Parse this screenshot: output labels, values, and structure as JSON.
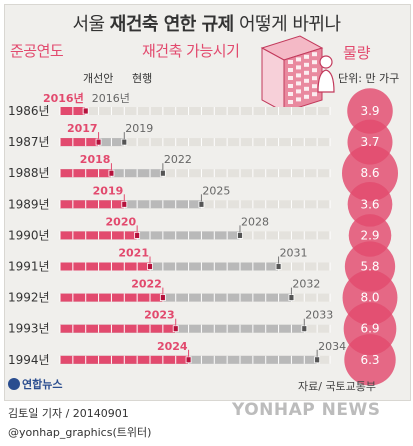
{
  "title_parts": [
    "서울 ",
    "재건축 연한 규제",
    " 어떻게 바뀌나"
  ],
  "headers": {
    "year": "준공연도",
    "available": "재건축 가능시기",
    "quantity": "물량"
  },
  "legend": {
    "improved": "개선안",
    "current": "현행"
  },
  "unit": "단위: 만 가구",
  "source": "자료/ 국토교통부",
  "credit": "김토일 기자 / 20140901",
  "handle": "@yonhap_graphics(트위터)",
  "logo_text": "연합뉴스",
  "watermark": "YONHAP NEWS",
  "colors": {
    "accent": "#e24a6e",
    "bar_gray": "#b9b9b9",
    "bubble": "#e24a6e"
  },
  "chart_data": {
    "type": "bar",
    "categories": [
      "1986년",
      "1987년",
      "1988년",
      "1989년",
      "1990년",
      "1991년",
      "1992년",
      "1993년",
      "1994년"
    ],
    "build_years": [
      1986,
      1987,
      1988,
      1989,
      1990,
      1991,
      1992,
      1993,
      1994
    ],
    "series": [
      {
        "name": "개선안",
        "values": [
          2016,
          2017,
          2018,
          2019,
          2020,
          2021,
          2022,
          2023,
          2024
        ]
      },
      {
        "name": "현행",
        "values": [
          2016,
          2019,
          2022,
          2025,
          2028,
          2031,
          2032,
          2033,
          2034
        ]
      }
    ],
    "value_labels": {
      "improved": [
        "2016년",
        "2017",
        "2018",
        "2019",
        "2020",
        "2021",
        "2022",
        "2023",
        "2024"
      ],
      "current": [
        "2016년",
        "2019",
        "2022",
        "2025",
        "2028",
        "2031",
        "2032",
        "2033",
        "2034"
      ]
    },
    "quantity": {
      "labels": [
        "3.9",
        "3.7",
        "8.6",
        "3.6",
        "2.9",
        "5.8",
        "8.0",
        "6.9",
        "6.3"
      ],
      "values": [
        3.9,
        3.7,
        8.6,
        3.6,
        2.9,
        5.8,
        8.0,
        6.9,
        6.3
      ]
    }
  }
}
